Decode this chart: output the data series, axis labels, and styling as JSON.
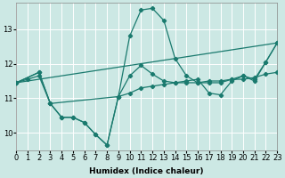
{
  "title": "",
  "xlabel": "Humidex (Indice chaleur)",
  "bg_color": "#cce8e4",
  "line_color": "#1a7a6e",
  "grid_color": "#ffffff",
  "xlim": [
    0,
    23
  ],
  "ylim": [
    9.5,
    13.75
  ],
  "yticks": [
    10,
    11,
    12,
    13
  ],
  "xtick_labels": [
    "0",
    "1",
    "2",
    "3",
    "4",
    "5",
    "6",
    "7",
    "8",
    "9",
    "10",
    "11",
    "12",
    "13",
    "14",
    "15",
    "16",
    "17",
    "18",
    "19",
    "20",
    "21",
    "22",
    "23"
  ],
  "series": [
    {
      "x": [
        0,
        1,
        2,
        3,
        4,
        5,
        6,
        7,
        8,
        9,
        10,
        11,
        12,
        13,
        14,
        15,
        16,
        17,
        18,
        19,
        20,
        21,
        22,
        23
      ],
      "y": [
        11.45,
        11.55,
        11.65,
        10.85,
        10.45,
        10.45,
        10.3,
        9.95,
        9.65,
        11.05,
        11.15,
        11.3,
        11.35,
        11.4,
        11.45,
        11.45,
        11.45,
        11.5,
        11.5,
        11.55,
        11.55,
        11.6,
        11.7,
        11.75
      ]
    },
    {
      "x": [
        0,
        2,
        3,
        4,
        5,
        6,
        7,
        8,
        9,
        10,
        11,
        12,
        13,
        14,
        15,
        16,
        17,
        18,
        19,
        20,
        21,
        22,
        23
      ],
      "y": [
        11.45,
        11.75,
        10.85,
        10.45,
        10.45,
        10.3,
        9.95,
        9.65,
        11.05,
        11.65,
        11.95,
        11.7,
        11.5,
        11.45,
        11.5,
        11.55,
        11.15,
        11.1,
        11.5,
        11.65,
        11.5,
        12.05,
        12.6
      ]
    },
    {
      "x": [
        0,
        2,
        3,
        9,
        10,
        11,
        12,
        13,
        14,
        15,
        16,
        17,
        18,
        19,
        20,
        21,
        22,
        23
      ],
      "y": [
        11.45,
        11.75,
        10.85,
        11.05,
        12.8,
        13.55,
        13.6,
        13.25,
        12.15,
        11.65,
        11.45,
        11.45,
        11.45,
        11.55,
        11.65,
        11.55,
        12.05,
        12.6
      ]
    },
    {
      "x": [
        0,
        23
      ],
      "y": [
        11.45,
        12.6
      ]
    }
  ]
}
